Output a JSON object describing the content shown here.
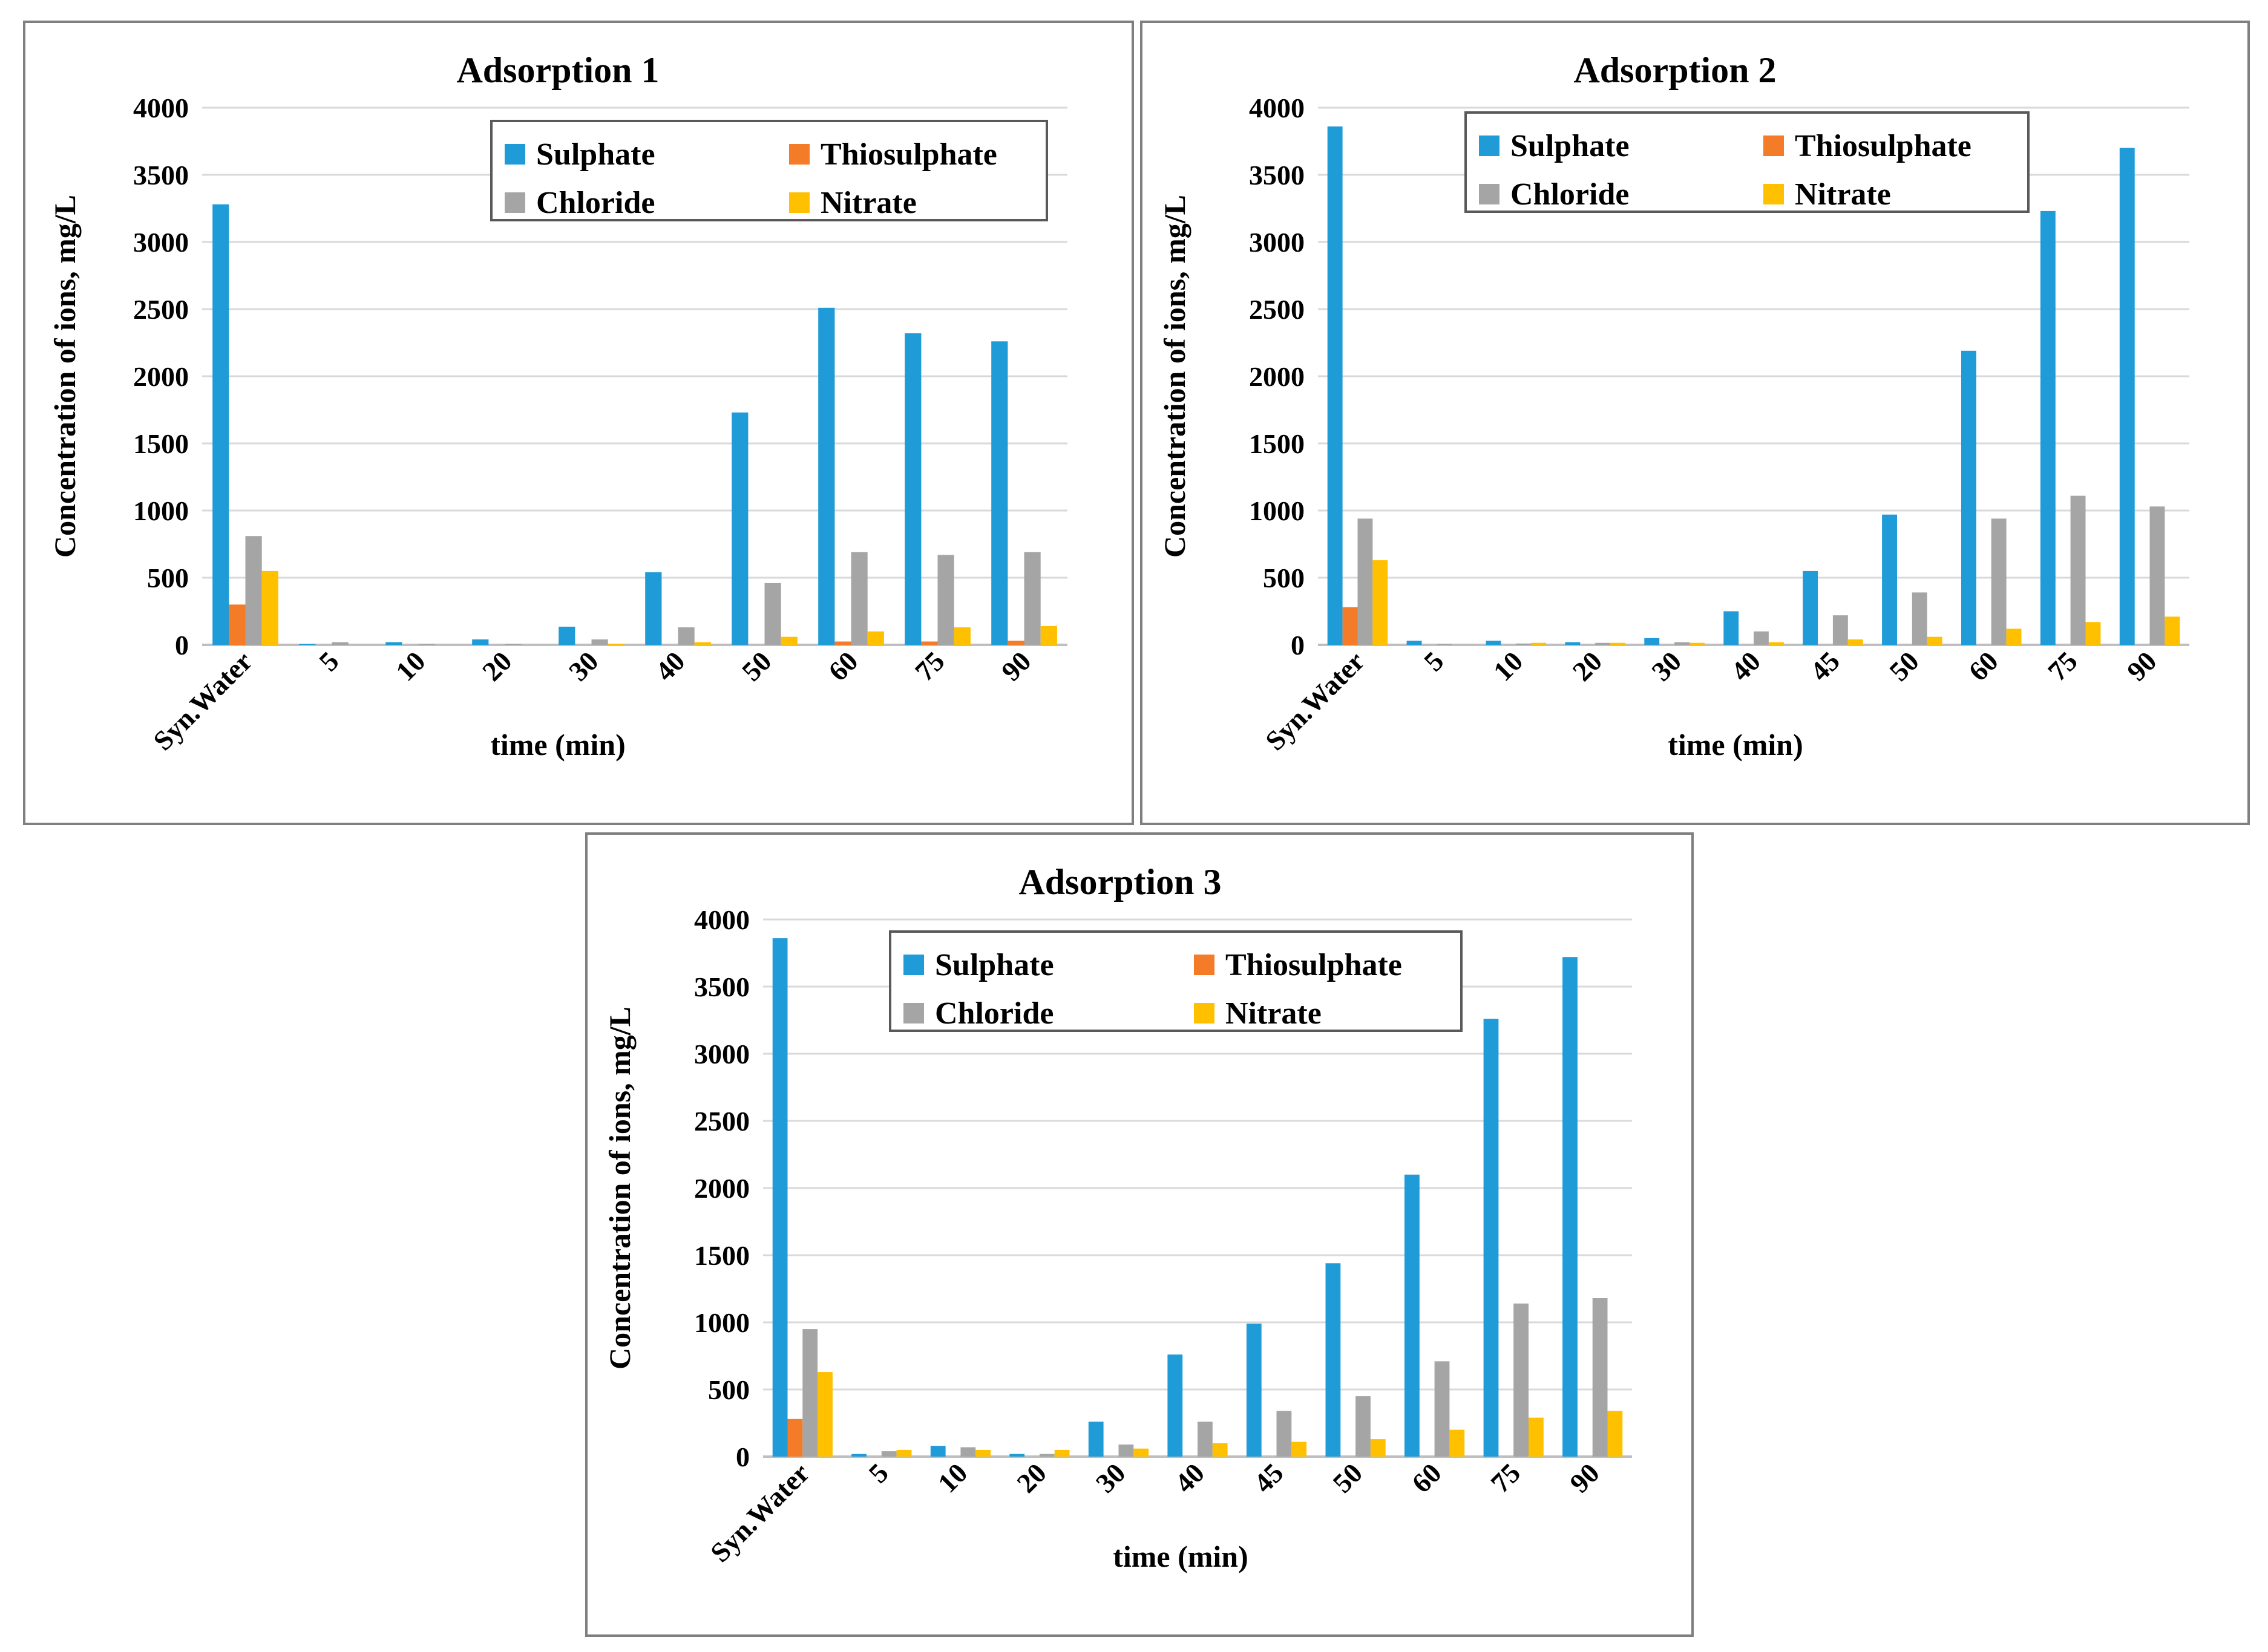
{
  "series_names": [
    "Sulphate",
    "Thiosulphate",
    "Chloride",
    "Nitrate"
  ],
  "colors": {
    "Sulphate": "#1f9bd7",
    "Thiosulphate": "#f47b28",
    "Chloride": "#a5a5a5",
    "Nitrate": "#ffc000"
  },
  "chart_data": [
    {
      "type": "bar",
      "title": "Adsorption 1",
      "xlabel": "time (min)",
      "ylabel": "Concentration of ions, mg/L",
      "ylim": [
        0,
        4000
      ],
      "yticks": [
        0,
        500,
        1000,
        1500,
        2000,
        2500,
        3000,
        3500,
        4000
      ],
      "grid": true,
      "legend": "top-right",
      "categories": [
        "Syn.Water",
        "5",
        "10",
        "20",
        "30",
        "40",
        "50",
        "60",
        "75",
        "90"
      ],
      "series": [
        {
          "name": "Sulphate",
          "values": [
            3280,
            5,
            20,
            40,
            135,
            540,
            1730,
            2510,
            2320,
            2260
          ]
        },
        {
          "name": "Thiosulphate",
          "values": [
            300,
            0,
            0,
            0,
            0,
            0,
            0,
            25,
            25,
            30
          ]
        },
        {
          "name": "Chloride",
          "values": [
            810,
            20,
            5,
            5,
            40,
            130,
            460,
            690,
            670,
            690
          ]
        },
        {
          "name": "Nitrate",
          "values": [
            550,
            0,
            0,
            0,
            5,
            20,
            60,
            100,
            130,
            140
          ]
        }
      ]
    },
    {
      "type": "bar",
      "title": "Adsorption 2",
      "xlabel": "time (min)",
      "ylabel": "Concentration of ions, mg/L",
      "ylim": [
        0,
        4000
      ],
      "yticks": [
        0,
        500,
        1000,
        1500,
        2000,
        2500,
        3000,
        3500,
        4000
      ],
      "grid": true,
      "legend": "top",
      "categories": [
        "Syn.Water",
        "5",
        "10",
        "20",
        "30",
        "40",
        "45",
        "50",
        "60",
        "75",
        "90"
      ],
      "series": [
        {
          "name": "Sulphate",
          "values": [
            3860,
            30,
            30,
            20,
            50,
            250,
            550,
            970,
            2190,
            3230,
            3700
          ]
        },
        {
          "name": "Thiosulphate",
          "values": [
            280,
            0,
            0,
            0,
            0,
            0,
            0,
            0,
            0,
            0,
            0
          ]
        },
        {
          "name": "Chloride",
          "values": [
            940,
            5,
            10,
            15,
            20,
            100,
            220,
            390,
            940,
            1110,
            1030
          ]
        },
        {
          "name": "Nitrate",
          "values": [
            630,
            0,
            15,
            15,
            15,
            20,
            40,
            60,
            120,
            170,
            210
          ]
        }
      ]
    },
    {
      "type": "bar",
      "title": "Adsorption 3",
      "xlabel": "time (min)",
      "ylabel": "Concentration of ions, mg/L",
      "ylim": [
        0,
        4000
      ],
      "yticks": [
        0,
        500,
        1000,
        1500,
        2000,
        2500,
        3000,
        3500,
        4000
      ],
      "grid": true,
      "legend": "top",
      "categories": [
        "Syn.Water",
        "5",
        "10",
        "20",
        "30",
        "40",
        "45",
        "50",
        "60",
        "75",
        "90"
      ],
      "series": [
        {
          "name": "Sulphate",
          "values": [
            3860,
            20,
            80,
            20,
            260,
            760,
            990,
            1440,
            2100,
            3260,
            3720
          ]
        },
        {
          "name": "Thiosulphate",
          "values": [
            280,
            0,
            0,
            0,
            0,
            0,
            0,
            0,
            0,
            0,
            0
          ]
        },
        {
          "name": "Chloride",
          "values": [
            950,
            40,
            70,
            20,
            90,
            260,
            340,
            450,
            710,
            1140,
            1180
          ]
        },
        {
          "name": "Nitrate",
          "values": [
            630,
            50,
            50,
            50,
            60,
            100,
            110,
            130,
            200,
            290,
            340
          ]
        }
      ]
    }
  ]
}
